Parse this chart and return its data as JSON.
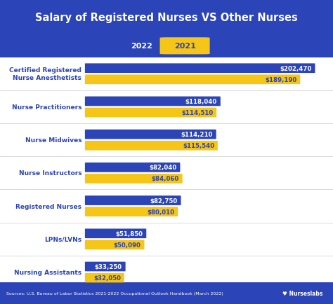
{
  "title": "Salary of Registered Nurses VS Other Nurses",
  "title_color": "#ffffff",
  "bg_color": "#2b44b8",
  "chart_bg": "#ffffff",
  "bar_color_2022": "#2b44b8",
  "bar_color_2021": "#f5c518",
  "categories": [
    "Certified Registered\nNurse Anesthetists",
    "Nurse Practitioners",
    "Nurse Midwives",
    "Nurse Instructors",
    "Registered Nurses",
    "LPNs/LVNs",
    "Nursing Assistants"
  ],
  "values_2022": [
    202470,
    118040,
    114210,
    82040,
    82750,
    51850,
    33250
  ],
  "values_2021": [
    189190,
    114510,
    115540,
    84060,
    80010,
    50090,
    32050
  ],
  "labels_2022": [
    "$202,470",
    "$118,040",
    "$114,210",
    "$82,040",
    "$82,750",
    "$51,850",
    "$33,250"
  ],
  "labels_2021": [
    "$189,190",
    "$114,510",
    "$115,540",
    "$84,060",
    "$80,010",
    "$50,090",
    "$32,050"
  ],
  "source_text": "Sources: U.S. Bureau of Labor Statistics 2021-2022 Occupational Outlook Handbook (March 2022)",
  "footer_bg": "#2b44b8",
  "label_color_2022": "#ffffff",
  "label_color_2021": "#2b44b8",
  "cat_label_color": "#2b44b8",
  "max_val": 220000
}
